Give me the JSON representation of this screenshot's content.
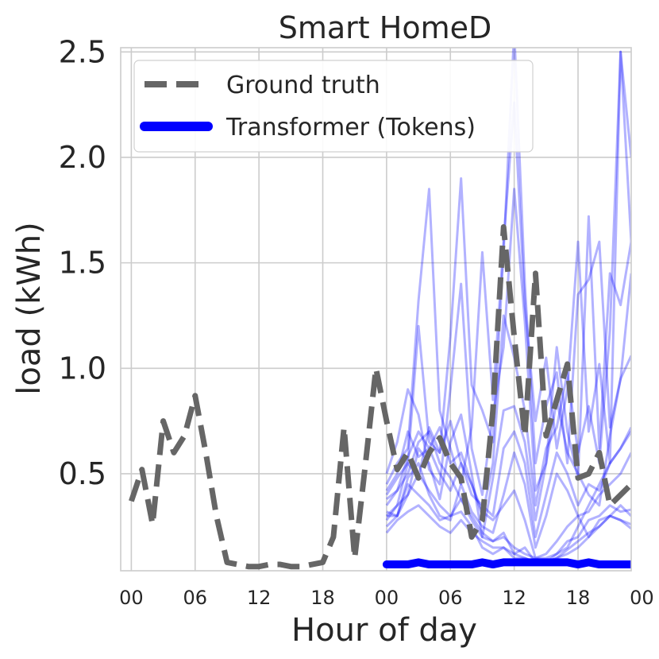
{
  "chart_data": {
    "type": "line",
    "title": "Smart HomeD",
    "xlabel": "Hour of day",
    "ylabel": "load (kWh)",
    "xlim": [
      -1,
      47
    ],
    "ylim": [
      0.04,
      2.52
    ],
    "xticks": [
      0,
      6,
      12,
      18,
      24,
      30,
      36,
      42,
      48
    ],
    "xtick_labels": [
      "00",
      "06",
      "12",
      "18",
      "00",
      "06",
      "12",
      "18",
      "00"
    ],
    "yticks": [
      0.5,
      1.0,
      1.5,
      2.0,
      2.5
    ],
    "ytick_labels": [
      "0.5",
      "1.0",
      "1.5",
      "2.0",
      "2.5"
    ],
    "grid": true,
    "legend_position": "top-left",
    "colors": {
      "ground_truth": "#666666",
      "transformer": "#0000ff",
      "samples": "#0000ff",
      "grid": "#cccccc"
    },
    "series": [
      {
        "name": "Ground truth",
        "style": "dashed",
        "x": [
          0,
          1,
          2,
          3,
          4,
          5,
          6,
          7,
          8,
          9,
          10,
          11,
          12,
          13,
          14,
          15,
          16,
          17,
          18,
          19,
          20,
          21,
          22,
          23,
          24,
          25,
          26,
          27,
          28,
          29,
          30,
          31,
          32,
          33,
          34,
          35,
          36,
          37,
          38,
          39,
          40,
          41,
          42,
          43,
          44,
          45,
          46,
          47
        ],
        "y": [
          0.37,
          0.52,
          0.26,
          0.75,
          0.6,
          0.68,
          0.87,
          0.6,
          0.3,
          0.08,
          0.07,
          0.06,
          0.06,
          0.07,
          0.07,
          0.06,
          0.06,
          0.07,
          0.08,
          0.2,
          0.72,
          0.1,
          0.54,
          1.0,
          0.75,
          0.52,
          0.6,
          0.48,
          0.6,
          0.67,
          0.55,
          0.48,
          0.2,
          0.28,
          0.8,
          1.67,
          1.15,
          0.68,
          1.45,
          0.68,
          0.85,
          1.02,
          0.48,
          0.5,
          0.6,
          0.35,
          0.4,
          0.45
        ]
      },
      {
        "name": "Transformer (Tokens)",
        "style": "solid",
        "x": [
          24,
          25,
          26,
          27,
          28,
          29,
          30,
          31,
          32,
          33,
          34,
          35,
          36,
          37,
          38,
          39,
          40,
          41,
          42,
          43,
          44,
          45,
          46,
          47
        ],
        "y": [
          0.07,
          0.07,
          0.07,
          0.08,
          0.07,
          0.07,
          0.07,
          0.07,
          0.07,
          0.08,
          0.07,
          0.08,
          0.08,
          0.08,
          0.08,
          0.08,
          0.08,
          0.08,
          0.07,
          0.08,
          0.07,
          0.07,
          0.07,
          0.07
        ]
      }
    ],
    "samples": {
      "x": [
        24,
        25,
        26,
        27,
        28,
        29,
        30,
        31,
        32,
        33,
        34,
        35,
        36,
        37,
        38,
        39,
        40,
        41,
        42,
        43,
        44,
        45,
        46,
        47
      ],
      "lines": [
        [
          0.45,
          0.55,
          0.62,
          1.32,
          1.85,
          0.8,
          0.62,
          0.45,
          0.72,
          1.55,
          0.85,
          1.6,
          2.26,
          1.3,
          0.75,
          1.05,
          0.62,
          0.9,
          1.6,
          0.7,
          1.02,
          0.55,
          2.5,
          2.0
        ],
        [
          0.28,
          0.35,
          0.55,
          1.2,
          0.65,
          0.6,
          1.15,
          1.9,
          0.92,
          0.8,
          0.65,
          1.55,
          2.6,
          1.4,
          0.55,
          0.82,
          0.98,
          0.55,
          1.35,
          1.42,
          1.6,
          0.72,
          0.95,
          1.06
        ],
        [
          0.5,
          0.65,
          0.9,
          0.78,
          0.52,
          0.45,
          0.9,
          1.4,
          0.62,
          0.4,
          0.78,
          1.1,
          1.85,
          1.22,
          0.42,
          0.55,
          1.1,
          0.7,
          0.48,
          1.72,
          0.62,
          1.45,
          1.3,
          1.6
        ],
        [
          0.4,
          0.48,
          0.55,
          0.48,
          0.72,
          0.6,
          0.75,
          0.55,
          0.45,
          0.3,
          0.55,
          1.25,
          1.05,
          0.8,
          0.35,
          0.62,
          0.72,
          0.98,
          0.6,
          0.82,
          0.55,
          1.18,
          2.5,
          1.6
        ],
        [
          0.3,
          0.3,
          0.4,
          0.62,
          0.55,
          0.38,
          0.65,
          0.78,
          0.5,
          0.2,
          0.48,
          0.8,
          0.82,
          0.65,
          0.28,
          0.55,
          0.85,
          0.6,
          0.5,
          0.4,
          0.35,
          0.68,
          0.95,
          1.45
        ],
        [
          0.35,
          0.42,
          0.58,
          0.7,
          0.62,
          0.5,
          0.42,
          0.55,
          0.4,
          0.35,
          0.3,
          0.62,
          0.7,
          0.55,
          0.2,
          0.4,
          0.6,
          0.5,
          0.35,
          0.45,
          0.42,
          0.55,
          0.62,
          0.72
        ],
        [
          0.25,
          0.3,
          0.48,
          0.55,
          0.4,
          0.3,
          0.28,
          0.45,
          0.32,
          0.25,
          0.22,
          0.4,
          0.6,
          0.45,
          0.15,
          0.3,
          0.5,
          0.42,
          0.3,
          0.32,
          0.4,
          0.45,
          0.5,
          0.6
        ],
        [
          0.42,
          0.5,
          0.7,
          0.58,
          0.62,
          0.72,
          0.55,
          0.6,
          0.45,
          0.32,
          0.28,
          0.35,
          0.42,
          0.28,
          0.1,
          0.12,
          0.18,
          0.25,
          0.3,
          0.2,
          0.28,
          0.3,
          0.35,
          0.3
        ],
        [
          0.38,
          0.42,
          0.5,
          0.65,
          0.7,
          0.55,
          0.48,
          0.38,
          0.3,
          0.22,
          0.18,
          0.22,
          0.12,
          0.15,
          0.08,
          0.08,
          0.12,
          0.18,
          0.2,
          0.28,
          0.3,
          0.35,
          0.32,
          0.33
        ],
        [
          0.32,
          0.3,
          0.45,
          0.4,
          0.35,
          0.28,
          0.3,
          0.32,
          0.25,
          0.15,
          0.12,
          0.15,
          0.1,
          0.1,
          0.08,
          0.08,
          0.1,
          0.14,
          0.18,
          0.22,
          0.25,
          0.3,
          0.28,
          0.24
        ],
        [
          0.3,
          0.35,
          0.4,
          0.5,
          0.42,
          0.35,
          0.3,
          0.38,
          0.28,
          0.2,
          0.18,
          0.2,
          0.15,
          0.12,
          0.1,
          0.1,
          0.12,
          0.15,
          0.25,
          0.35,
          0.45,
          0.55,
          0.62,
          0.7
        ],
        [
          0.22,
          0.28,
          0.32,
          0.35,
          0.3,
          0.25,
          0.22,
          0.28,
          0.22,
          0.18,
          0.15,
          0.15,
          0.12,
          0.1,
          0.08,
          0.08,
          0.1,
          0.12,
          0.15,
          0.2,
          0.25,
          0.3,
          0.28,
          0.26
        ]
      ]
    }
  }
}
